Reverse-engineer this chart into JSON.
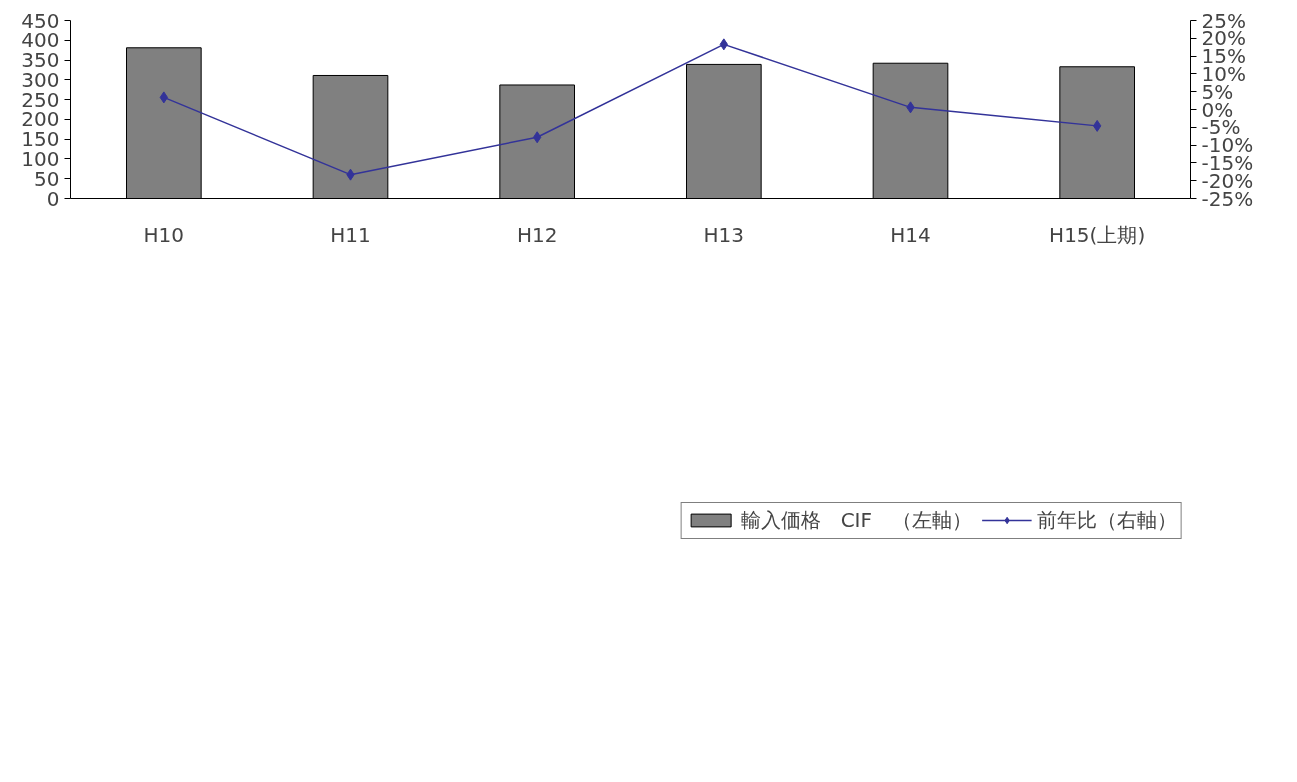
{
  "chart_data": {
    "type": "bar",
    "categories": [
      "H10",
      "H11",
      "H12",
      "H13",
      "H14",
      "H15(上期)"
    ],
    "series": [
      {
        "name": "輸入価格　CIF　（左軸）",
        "color": "#808080",
        "values": [
          381,
          311,
          287,
          339,
          342,
          333
        ]
      },
      {
        "name": "前年比（右軸）",
        "type": "line",
        "axis": "y2",
        "color": "#333399",
        "marker": "diamond",
        "values": [
          3.4,
          -18.3,
          -7.8,
          18.3,
          0.6,
          -4.6
        ]
      }
    ],
    "ylim": [
      0,
      450
    ],
    "yticks": [
      0,
      50,
      100,
      150,
      200,
      250,
      300,
      350,
      400,
      450
    ],
    "y2lim": [
      -25,
      25
    ],
    "y2ticks": [
      {
        "value": -25,
        "label": "-25%"
      },
      {
        "value": -20,
        "label": "-20%"
      },
      {
        "value": -15,
        "label": "-15%"
      },
      {
        "value": -10,
        "label": "-10%"
      },
      {
        "value": -5,
        "label": "-5%"
      },
      {
        "value": 0,
        "label": "0%"
      },
      {
        "value": 5,
        "label": "5%"
      },
      {
        "value": 10,
        "label": "10%"
      },
      {
        "value": 15,
        "label": "15%"
      },
      {
        "value": 20,
        "label": "20%"
      },
      {
        "value": 25,
        "label": "25%"
      }
    ],
    "legend": "bottom",
    "grid": false
  }
}
